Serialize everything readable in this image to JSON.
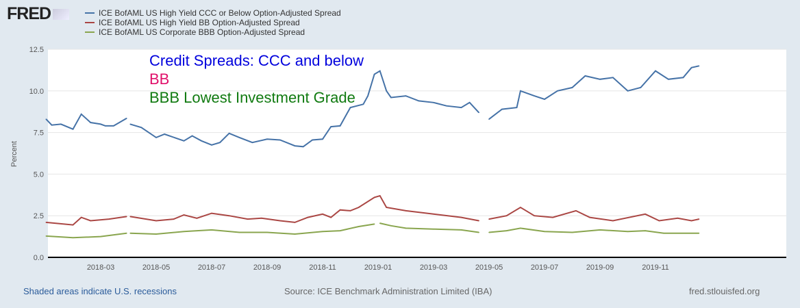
{
  "logo": "FRED",
  "footer": {
    "left": "Shaded areas indicate U.S. recessions",
    "center": "Source: ICE Benchmark Administration Limited (IBA)",
    "right": "fred.stlouisfed.org"
  },
  "colors": {
    "ccc": "#4572a7",
    "bb": "#aa4643",
    "bbb": "#89a54e"
  },
  "chart_data": {
    "type": "line",
    "title": "",
    "ylabel": "Percent",
    "xlabel": "",
    "ylim": [
      0,
      12.5
    ],
    "grid": true,
    "legend": "top-left",
    "yticks": [
      "0.0",
      "2.5",
      "5.0",
      "7.5",
      "10.0",
      "12.5"
    ],
    "xticks": [
      "2018-03",
      "2018-05",
      "2018-07",
      "2018-09",
      "2018-11",
      "2019-01",
      "2019-03",
      "2019-05",
      "2019-07",
      "2019-09",
      "2019-11"
    ],
    "annotations": [
      {
        "text": "Credit Spreads: CCC and below",
        "color": "#0000dd"
      },
      {
        "text": "BB",
        "color": "#e0106a"
      },
      {
        "text": "BBB Lowest Investment Grade",
        "color": "#107a10"
      }
    ],
    "series": [
      {
        "name": "ICE BofAML US High Yield CCC or Below Option-Adjusted Spread",
        "color": "#4572a7",
        "x": [
          "2018-01-02",
          "2018-01-08",
          "2018-01-18",
          "2018-02-01",
          "2018-02-10",
          "2018-02-20",
          "2018-03-01",
          "2018-03-06",
          "2018-03-15",
          "2018-03-29",
          null,
          "2018-04-03",
          "2018-04-15",
          "2018-05-01",
          "2018-05-10",
          "2018-06-01",
          "2018-06-10",
          "2018-06-20",
          "2018-07-01",
          "2018-07-10",
          "2018-07-20",
          "2018-08-01",
          "2018-08-15",
          "2018-09-01",
          "2018-09-15",
          "2018-10-01",
          "2018-10-10",
          "2018-10-20",
          "2018-11-01",
          "2018-11-10",
          "2018-11-20",
          "2018-12-01",
          "2018-12-15",
          "2018-12-20",
          "2018-12-27",
          "2019-01-03",
          "2019-01-10",
          "2019-01-15",
          "2019-02-01",
          "2019-02-15",
          "2019-03-01",
          "2019-03-15",
          "2019-04-01",
          "2019-04-10",
          "2019-04-20",
          null,
          "2019-05-01",
          "2019-05-15",
          "2019-06-01",
          "2019-06-05",
          "2019-06-20",
          "2019-07-01",
          "2019-07-15",
          "2019-08-01",
          "2019-08-15",
          "2019-09-01",
          "2019-09-15",
          "2019-10-01",
          "2019-10-15",
          "2019-11-01",
          "2019-11-15",
          "2019-12-01",
          "2019-12-10",
          "2019-12-18"
        ],
        "values": [
          8.3,
          7.95,
          8.0,
          7.7,
          8.6,
          8.1,
          8.0,
          7.9,
          7.9,
          8.35,
          null,
          8.0,
          7.8,
          7.2,
          7.4,
          7.0,
          7.3,
          7.0,
          6.75,
          6.9,
          7.45,
          7.2,
          6.9,
          7.1,
          7.05,
          6.7,
          6.65,
          7.05,
          7.1,
          7.85,
          7.9,
          9.0,
          9.2,
          9.7,
          11.0,
          11.2,
          10.0,
          9.6,
          9.7,
          9.4,
          9.3,
          9.1,
          9.0,
          9.3,
          8.7,
          null,
          8.3,
          8.9,
          9.0,
          10.0,
          9.7,
          9.5,
          10.0,
          10.2,
          10.9,
          10.7,
          10.8,
          10.0,
          10.2,
          11.2,
          10.7,
          10.8,
          11.4,
          11.5
        ]
      },
      {
        "name": "ICE BofAML US High Yield BB Option-Adjusted Spread",
        "color": "#aa4643",
        "x": [
          "2018-01-02",
          "2018-02-01",
          "2018-02-10",
          "2018-02-20",
          "2018-03-10",
          "2018-03-29",
          null,
          "2018-04-03",
          "2018-05-01",
          "2018-05-20",
          "2018-06-01",
          "2018-06-15",
          "2018-07-01",
          "2018-07-20",
          "2018-08-10",
          "2018-08-25",
          "2018-09-15",
          "2018-10-01",
          "2018-10-15",
          "2018-11-01",
          "2018-11-10",
          "2018-11-20",
          "2018-12-01",
          "2018-12-10",
          "2018-12-27",
          "2019-01-03",
          "2019-01-10",
          "2019-02-01",
          "2019-03-01",
          "2019-04-01",
          "2019-04-20",
          null,
          "2019-05-01",
          "2019-05-20",
          "2019-06-05",
          "2019-06-20",
          "2019-07-10",
          "2019-08-05",
          "2019-08-20",
          "2019-09-15",
          "2019-10-20",
          "2019-11-05",
          "2019-11-25",
          "2019-12-10",
          "2019-12-18"
        ],
        "values": [
          2.1,
          1.95,
          2.4,
          2.2,
          2.3,
          2.45,
          null,
          2.45,
          2.2,
          2.3,
          2.55,
          2.35,
          2.65,
          2.5,
          2.3,
          2.35,
          2.2,
          2.1,
          2.4,
          2.6,
          2.4,
          2.85,
          2.8,
          3.0,
          3.6,
          3.7,
          3.0,
          2.8,
          2.6,
          2.4,
          2.2,
          null,
          2.3,
          2.5,
          3.0,
          2.5,
          2.4,
          2.8,
          2.4,
          2.2,
          2.6,
          2.2,
          2.35,
          2.2,
          2.3
        ]
      },
      {
        "name": "ICE BofAML US Corporate BBB Option-Adjusted Spread",
        "color": "#89a54e",
        "x": [
          "2018-01-02",
          "2018-02-01",
          "2018-03-01",
          "2018-03-29",
          null,
          "2018-04-03",
          "2018-05-01",
          "2018-06-01",
          "2018-07-01",
          "2018-08-01",
          "2018-09-01",
          "2018-10-01",
          "2018-11-01",
          "2018-11-20",
          "2018-12-10",
          "2018-12-27",
          null,
          "2019-01-03",
          "2019-01-15",
          "2019-02-01",
          "2019-03-01",
          "2019-04-01",
          "2019-04-20",
          null,
          "2019-05-01",
          "2019-05-20",
          "2019-06-05",
          "2019-07-01",
          "2019-08-01",
          "2019-09-01",
          "2019-10-01",
          "2019-10-20",
          "2019-11-10",
          "2019-12-18"
        ],
        "values": [
          1.28,
          1.18,
          1.25,
          1.45,
          null,
          1.45,
          1.4,
          1.55,
          1.65,
          1.5,
          1.5,
          1.4,
          1.55,
          1.6,
          1.85,
          2.0,
          null,
          2.05,
          1.9,
          1.75,
          1.7,
          1.65,
          1.5,
          null,
          1.5,
          1.6,
          1.75,
          1.55,
          1.5,
          1.65,
          1.55,
          1.6,
          1.45,
          1.45
        ]
      }
    ]
  }
}
